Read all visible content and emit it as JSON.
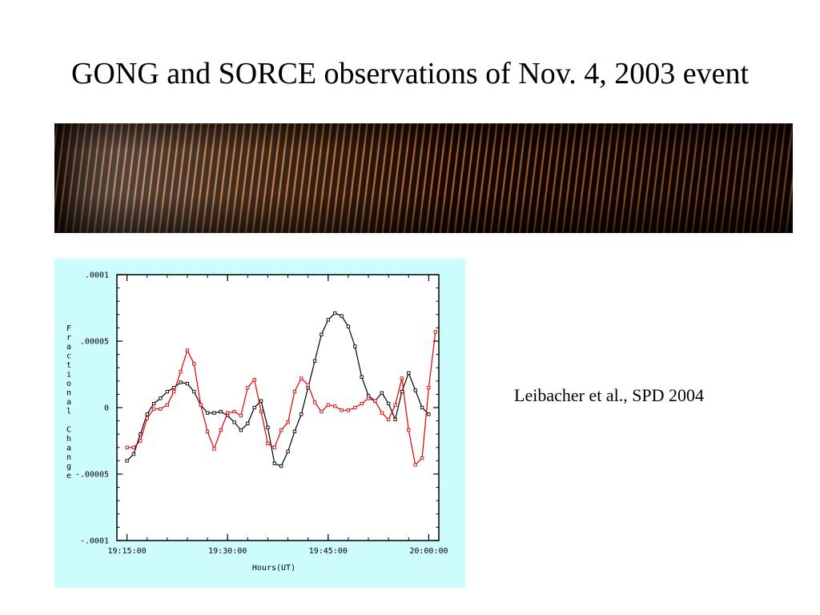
{
  "slide": {
    "title": "GONG and SORCE observations of Nov. 4, 2003 event",
    "citation": "Leibacher et al., SPD 2004"
  },
  "image_strip": {
    "description_icon": "gong-time-distance-image",
    "colors": {
      "dark": "#1a0700",
      "mid": "#7a2d08",
      "bright": "#ffd9a6"
    }
  },
  "chart_data": {
    "type": "line",
    "background": "#ccfcfc",
    "plot_background": "#ffffff",
    "ylabel": "Fractional Change",
    "xlabel": "Hours(UT)",
    "ylim": [
      -0.0001,
      0.0001
    ],
    "y_ticks": [
      ".0001",
      ".00005",
      "0",
      "-.00005",
      "-.0001"
    ],
    "y_tick_values": [
      0.0001,
      5e-05,
      0,
      -5e-05,
      -0.0001
    ],
    "x_ticks": [
      "19:15:00",
      "19:30:00",
      "19:45:00",
      "20:00:00"
    ],
    "x_tick_values": [
      0,
      15,
      30,
      45
    ],
    "xlim": [
      -1.5,
      46.5
    ],
    "grid": false,
    "series": [
      {
        "color": "#000000",
        "marker": "square",
        "x": [
          0,
          1,
          2,
          3,
          4,
          5,
          6,
          7,
          8,
          9,
          10,
          11,
          12,
          13,
          14,
          15,
          16,
          17,
          18,
          19,
          20,
          21,
          22,
          23,
          24,
          25,
          26,
          27,
          28,
          29,
          30,
          31,
          32,
          33,
          34,
          35,
          36,
          37,
          38,
          39,
          40,
          41,
          42,
          43,
          44,
          45
        ],
        "values": [
          -4e-05,
          -3.5e-05,
          -2e-05,
          -5e-06,
          3e-06,
          7e-06,
          1.2e-05,
          1.5e-05,
          1.9e-05,
          1.8e-05,
          1.2e-05,
          2e-06,
          -4e-06,
          -4e-06,
          -3e-06,
          -6e-06,
          -1.1e-05,
          -1.7e-05,
          -1.2e-05,
          0.0,
          5e-06,
          -1.5e-05,
          -4.2e-05,
          -4.4e-05,
          -3.3e-05,
          -1.8e-05,
          -5e-06,
          1.5e-05,
          3.5e-05,
          5.5e-05,
          6.6e-05,
          7.1e-05,
          6.9e-05,
          6.1e-05,
          4.6e-05,
          2.3e-05,
          9e-06,
          5e-06,
          1.1e-05,
          3e-06,
          -9e-06,
          1.2e-05,
          2.6e-05,
          1.3e-05,
          0.0,
          -5e-06
        ]
      },
      {
        "color": "#e00000",
        "marker": "square",
        "x": [
          0,
          1,
          2,
          3,
          4,
          5,
          6,
          7,
          8,
          9,
          10,
          11,
          12,
          13,
          14,
          15,
          16,
          17,
          18,
          19,
          20,
          21,
          22,
          23,
          24,
          25,
          26,
          27,
          28,
          29,
          30,
          31,
          32,
          33,
          34,
          35,
          36,
          37,
          38,
          39,
          40,
          41,
          42,
          43,
          44,
          45,
          46
        ],
        "values": [
          -3e-05,
          -3e-05,
          -2.5e-05,
          -8e-06,
          -1e-06,
          -1e-06,
          2e-06,
          1.2e-05,
          2.7e-05,
          4.3e-05,
          3.3e-05,
          2e-06,
          -1.8e-05,
          -3.1e-05,
          -1.7e-05,
          -4e-06,
          -3e-06,
          -6e-06,
          1.5e-05,
          2.1e-05,
          -3e-06,
          -2.7e-05,
          -3e-05,
          -1.7e-05,
          -1.1e-05,
          1.2e-05,
          2.2e-05,
          1.7e-05,
          4e-06,
          -3e-06,
          2e-06,
          1e-06,
          -2e-06,
          -2e-06,
          0.0,
          3e-06,
          7e-06,
          5e-06,
          -4e-06,
          -9e-06,
          2e-06,
          2.2e-05,
          -1.7e-05,
          -4.3e-05,
          -3.8e-05,
          1.5e-05,
          5.7e-05
        ]
      }
    ]
  }
}
